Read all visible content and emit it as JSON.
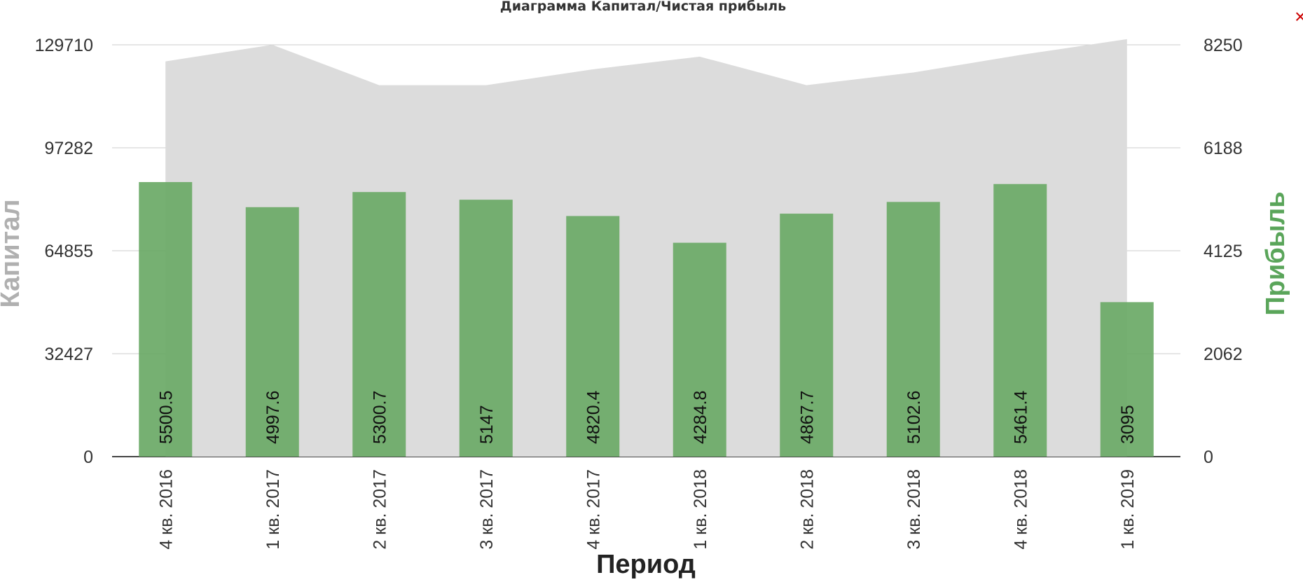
{
  "chart_data": {
    "type": "bar",
    "title": "Диаграмма Капитал/Чистая прибыль",
    "xlabel": "Период",
    "ylabel_left": "Капитал",
    "ylabel_right": "Прибыль",
    "categories": [
      "4 кв. 2016",
      "1 кв. 2017",
      "2 кв. 2017",
      "3 кв. 2017",
      "4 кв. 2017",
      "1 кв. 2018",
      "2 кв. 2018",
      "3 кв. 2018",
      "4 кв. 2018",
      "1 кв. 2019"
    ],
    "left_axis": {
      "ticks": [
        "0",
        "32427",
        "64855",
        "97282",
        "129710"
      ],
      "ylim": [
        0,
        129710
      ]
    },
    "right_axis": {
      "ticks": [
        "0",
        "2062",
        "4125",
        "6188",
        "8250"
      ],
      "ylim": [
        0,
        8250
      ]
    },
    "series": [
      {
        "type": "area",
        "axis": "left",
        "color": "#dcdcdc",
        "values": [
          124500,
          129710,
          117000,
          117000,
          122000,
          126000,
          117000,
          121000,
          126500,
          131500
        ]
      },
      {
        "type": "bar",
        "axis": "right",
        "color": "#6aa966",
        "values": [
          5500.5,
          4997.6,
          5300.7,
          5147,
          4820.4,
          4284.8,
          4867.7,
          5102.6,
          5461.4,
          3095
        ],
        "labels": [
          "5500.5",
          "4997.6",
          "5300.7",
          "5147",
          "4820.4",
          "4284.8",
          "4867.7",
          "5102.6",
          "5461.4",
          "3095"
        ]
      }
    ],
    "grid": true,
    "legend": "none",
    "colors": {
      "left_axis_title": "#b0b0b0",
      "right_axis_title": "#5aa55a"
    }
  },
  "ui": {
    "close_glyph": "×",
    "close_icon": "close-icon"
  }
}
